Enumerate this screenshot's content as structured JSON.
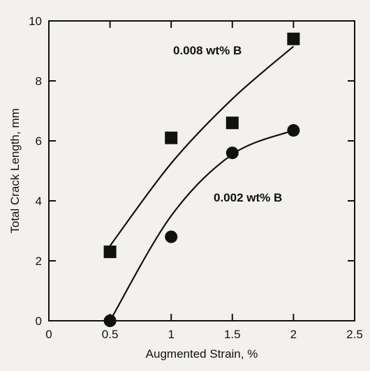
{
  "chart_data": {
    "type": "scatter",
    "title": "",
    "xlabel": "Augmented Strain, %",
    "ylabel": "Total Crack Length, mm",
    "xlim": [
      0,
      2.5
    ],
    "ylim": [
      0,
      10
    ],
    "x_ticks": [
      0,
      0.5,
      1,
      1.5,
      2,
      2.5
    ],
    "x_tick_labels": [
      "0",
      "0.5",
      "1",
      "1.5",
      "2",
      "2.5"
    ],
    "y_ticks": [
      0,
      2,
      4,
      6,
      8,
      10
    ],
    "y_tick_labels": [
      "0",
      "2",
      "4",
      "6",
      "8",
      "10"
    ],
    "grid": false,
    "series": [
      {
        "name": "0.008 wt% B",
        "marker": "square",
        "color": "#111111",
        "x": [
          0.5,
          1.0,
          1.5,
          2.0
        ],
        "y": [
          2.3,
          6.1,
          6.6,
          9.4
        ],
        "trend": [
          [
            0.5,
            2.5
          ],
          [
            1.0,
            5.25
          ],
          [
            1.5,
            7.4
          ],
          [
            2.0,
            9.15
          ]
        ]
      },
      {
        "name": "0.002 wt% B",
        "marker": "circle",
        "color": "#111111",
        "x": [
          0.5,
          1.0,
          1.5,
          2.0
        ],
        "y": [
          0.0,
          2.8,
          5.6,
          6.35
        ],
        "trend": [
          [
            0.5,
            0.0
          ],
          [
            1.0,
            3.5
          ],
          [
            1.5,
            5.55
          ],
          [
            2.0,
            6.35
          ]
        ]
      }
    ]
  }
}
